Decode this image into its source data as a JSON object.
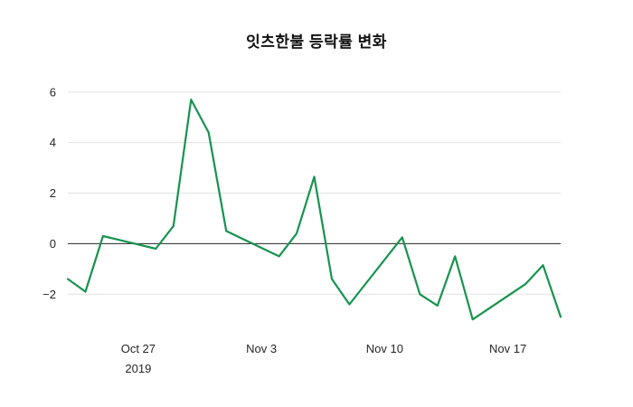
{
  "chart_data": {
    "type": "line",
    "title": "잇츠한불 등락률 변화",
    "series_name": "등락률",
    "line_color": "#17934f",
    "grid_color": "#e3e3e3",
    "zero_line_color": "#3d3d3d",
    "background_color": "#ffffff",
    "grid": "horizontal-only",
    "legend_position": "none",
    "x": [
      "2019-10-23",
      "2019-10-24",
      "2019-10-25",
      "2019-10-28",
      "2019-10-29",
      "2019-10-30",
      "2019-10-31",
      "2019-11-01",
      "2019-11-04",
      "2019-11-05",
      "2019-11-06",
      "2019-11-07",
      "2019-11-08",
      "2019-11-11",
      "2019-11-12",
      "2019-11-13",
      "2019-11-14",
      "2019-11-15",
      "2019-11-18",
      "2019-11-19",
      "2019-11-20"
    ],
    "values": [
      -1.4,
      -1.9,
      0.3,
      -0.2,
      0.7,
      5.7,
      4.4,
      0.5,
      -0.5,
      0.4,
      2.65,
      -1.4,
      -2.4,
      0.25,
      -2.0,
      -2.45,
      -0.5,
      -3.0,
      -1.6,
      -0.85,
      -2.9
    ],
    "ylim": [
      -3.6,
      6.6
    ],
    "y_ticks": [
      {
        "value": 6,
        "label": "6"
      },
      {
        "value": 4,
        "label": "4"
      },
      {
        "value": 2,
        "label": "2"
      },
      {
        "value": 0,
        "label": "0"
      },
      {
        "value": -2,
        "label": "−2"
      }
    ],
    "x_ticks": [
      {
        "date": "2019-10-27",
        "label": "Oct 27",
        "sublabel": "2019"
      },
      {
        "date": "2019-11-03",
        "label": "Nov 3",
        "sublabel": ""
      },
      {
        "date": "2019-11-10",
        "label": "Nov 10",
        "sublabel": ""
      },
      {
        "date": "2019-11-17",
        "label": "Nov 17",
        "sublabel": ""
      }
    ]
  }
}
